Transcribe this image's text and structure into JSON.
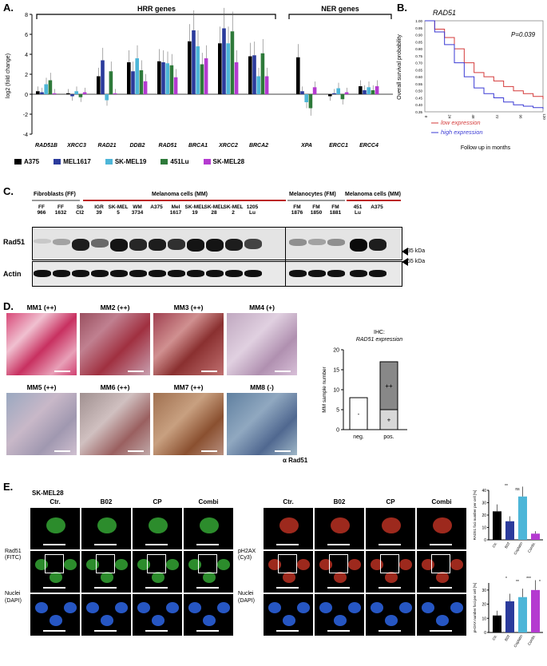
{
  "panelA": {
    "label": "A.",
    "hrr_title": "HRR genes",
    "ner_title": "NER genes",
    "ylabel": "log2 (fold change)",
    "yticks": [
      "8",
      "6",
      "4",
      "2",
      "0",
      "-2",
      "-4"
    ],
    "colors": {
      "A375": "#000000",
      "MEL1617": "#2b3b9c",
      "SK-MEL19": "#4db6d8",
      "451Lu": "#2e7a3a",
      "SK-MEL28": "#b43ad0"
    },
    "legend": [
      "A375",
      "MEL1617",
      "SK-MEL19",
      "451Lu",
      "SK-MEL28"
    ]
  },
  "chart_data": [
    {
      "type": "bar",
      "ylabel": "log2 (fold change)",
      "ylim": [
        -4,
        8
      ],
      "categories": [
        "RAD51B",
        "XRCC3",
        "RAD21",
        "DDB2",
        "RAD51",
        "BRCA1",
        "XRCC2",
        "BRCA2",
        "XPA",
        "ERCC1",
        "ERCC4"
      ],
      "series": [
        {
          "name": "A375",
          "values": [
            0.3,
            0.1,
            1.8,
            3.2,
            3.3,
            5.3,
            5.1,
            3.8,
            3.7,
            -0.2,
            0.8
          ]
        },
        {
          "name": "MEL1617",
          "values": [
            0.2,
            -0.2,
            3.4,
            2.3,
            3.2,
            6.4,
            6.6,
            3.9,
            0.3,
            0.1,
            0.4
          ]
        },
        {
          "name": "SK-MEL19",
          "values": [
            1.0,
            0.3,
            -0.6,
            3.6,
            3.1,
            4.8,
            5.1,
            1.8,
            -0.8,
            0.6,
            0.7
          ]
        },
        {
          "name": "451Lu",
          "values": [
            1.4,
            -0.3,
            2.3,
            2.4,
            2.9,
            3.0,
            6.3,
            4.1,
            -1.4,
            -0.5,
            0.4
          ]
        },
        {
          "name": "SK-MEL28",
          "values": [
            0.1,
            0.2,
            0.1,
            1.3,
            1.7,
            3.6,
            3.2,
            1.8,
            0.7,
            0.2,
            0.8
          ]
        }
      ]
    },
    {
      "type": "line",
      "title": "RAD51",
      "annotation": "P=0.039",
      "xlabel": "Follow up in months",
      "ylabel": "Overall survival probability",
      "xticks": [
        "0",
        "24",
        "48",
        "72",
        "96",
        "120"
      ],
      "yticks": [
        "1.00",
        "0.95",
        "0.90",
        "0.85",
        "0.80",
        "0.75",
        "0.70",
        "0.65",
        "0.60",
        "0.55",
        "0.50",
        "0.45",
        "0.40",
        "0.35"
      ],
      "ylim": [
        0.35,
        1.0
      ],
      "series": [
        {
          "name": "low expression",
          "x": [
            0,
            10,
            20,
            30,
            40,
            50,
            60,
            70,
            80,
            90,
            100,
            110,
            120
          ],
          "y": [
            1.0,
            0.94,
            0.88,
            0.8,
            0.7,
            0.63,
            0.6,
            0.57,
            0.53,
            0.5,
            0.48,
            0.46,
            0.44
          ]
        },
        {
          "name": "high expression",
          "x": [
            0,
            10,
            20,
            30,
            40,
            50,
            60,
            70,
            80,
            90,
            100,
            110,
            120
          ],
          "y": [
            1.0,
            0.92,
            0.83,
            0.7,
            0.6,
            0.52,
            0.48,
            0.45,
            0.42,
            0.4,
            0.39,
            0.38,
            0.37
          ]
        }
      ]
    },
    {
      "type": "bar",
      "title": "IHC: RAD51 expression",
      "ylabel": "MM sample number",
      "categories": [
        "neg.",
        "pos."
      ],
      "ylim": [
        0,
        20
      ],
      "series": [
        {
          "name": "-",
          "values": [
            8,
            0
          ]
        },
        {
          "name": "+",
          "values": [
            0,
            5
          ]
        },
        {
          "name": "++",
          "values": [
            0,
            12
          ]
        }
      ]
    },
    {
      "type": "bar",
      "ylabel": "RAD51 foci number per cell [%]",
      "categories": [
        "Ctr.",
        "B02",
        "Cisplatin",
        "Combi."
      ],
      "values": [
        23,
        15,
        35,
        5
      ],
      "ylim": [
        0,
        40
      ]
    },
    {
      "type": "bar",
      "ylabel": "pH2AX number foci per cell [%]",
      "categories": [
        "Ctr.",
        "B02",
        "Cisplatin",
        "Combi."
      ],
      "values": [
        12,
        22,
        25,
        30
      ],
      "ylim": [
        0,
        35
      ]
    }
  ],
  "panelB": {
    "label": "B.",
    "title": "RAD51",
    "pval": "P=0.039",
    "ylabel": "Overall survival probability",
    "xlabel": "Follow up in months",
    "low": "low expression",
    "high": "high expression",
    "low_color": "#d43a3a",
    "high_color": "#3a3ad4"
  },
  "panelC": {
    "label": "C.",
    "groups": [
      "Fibroblasts (FF)",
      "Melanoma cells (MM)",
      "Melanocytes (FM)",
      "Melanoma cells (MM)"
    ],
    "lanes": [
      "FF 966",
      "FF 1632",
      "Sb Cl2",
      "IGR 39",
      "SK-MEL 5",
      "WM 3734",
      "A375",
      "Mel 1617",
      "SK-MEL 19",
      "SK-MEL 28",
      "SK-MEL 2",
      "1205 Lu",
      "FM 1876",
      "FM 1850",
      "FM 1881",
      "451 Lu",
      "A375"
    ],
    "row1": "Rad51",
    "row2": "Actin",
    "kda1": "35 kDa",
    "kda2": "55 kDa"
  },
  "panelD": {
    "label": "D.",
    "samples": [
      "MM1 (++)",
      "MM2 (++)",
      "MM3 (++)",
      "MM4 (+)",
      "MM5 (++)",
      "MM6 (++)",
      "MM7 (++)",
      "MM8 (-)"
    ],
    "stain": "α Rad51",
    "chart_title1": "IHC:",
    "chart_title2": "RAD51 expression",
    "ylabel": "MM sample number",
    "yticks": [
      "20",
      "15",
      "10",
      "5",
      "0"
    ],
    "cats": [
      "neg.",
      "pos."
    ],
    "seg_labels": [
      "-",
      "+",
      "++"
    ]
  },
  "panelE": {
    "label": "E.",
    "cellline": "SK-MEL28",
    "cols": [
      "Ctr.",
      "B02",
      "CP",
      "Combi"
    ],
    "rows_left": [
      "Rad51",
      "(FITC)",
      "Nuclei",
      "(DAPI)"
    ],
    "rows_right": [
      "pH2AX",
      "(Cy3)",
      "Nuclei",
      "(DAPI)"
    ],
    "bar_cats": [
      "Ctr.",
      "B02",
      "Cisplatin",
      "Combi."
    ],
    "chart1_ylabel": "RAD51 foci number per cell [%]",
    "chart1_yticks": [
      "40",
      "30",
      "20",
      "10",
      "0"
    ],
    "chart2_ylabel": "pH2AX number foci per cell [%]",
    "chart2_yticks": [
      "30",
      "20",
      "10",
      "0"
    ],
    "sig1": [
      "**",
      "ns"
    ],
    "sig2": [
      "*",
      "**",
      "***",
      "*"
    ]
  }
}
